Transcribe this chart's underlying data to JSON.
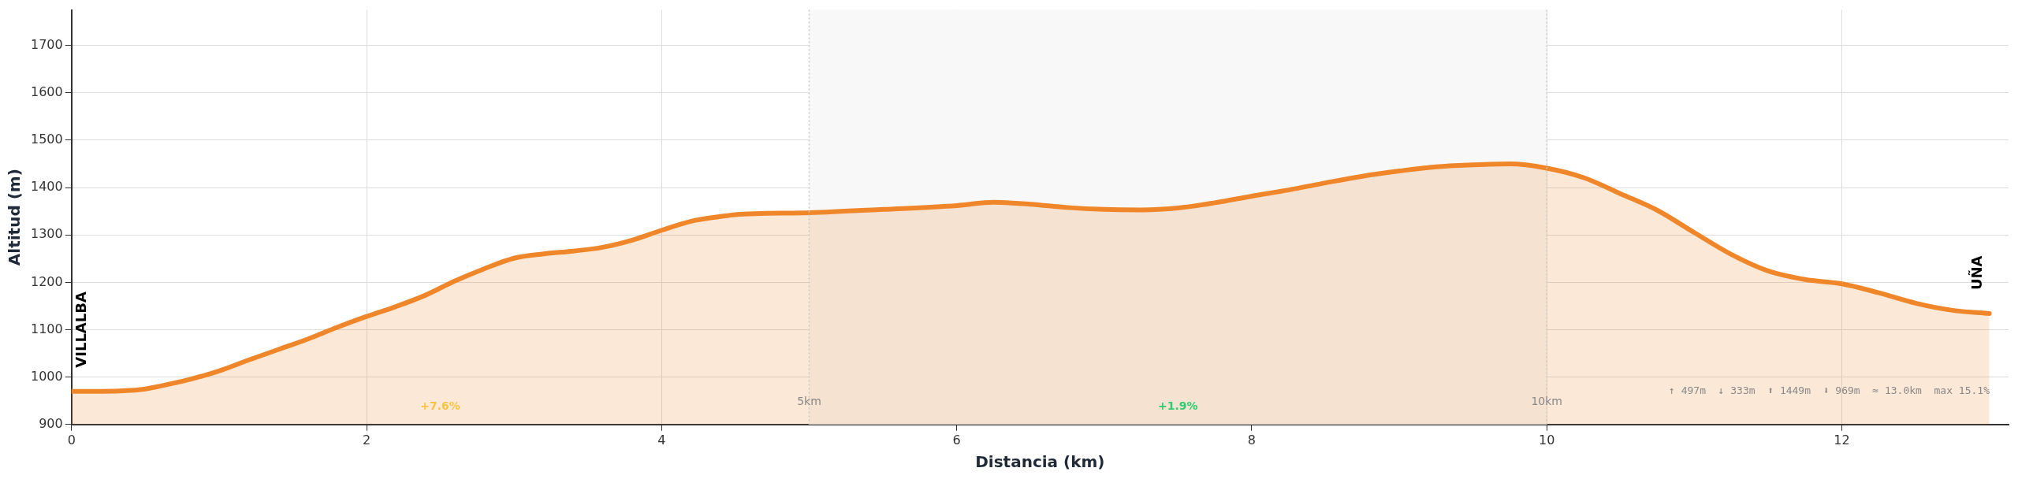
{
  "chart_data": {
    "type": "area",
    "xlabel": "Distancia (km)",
    "ylabel": "Altitud (m)",
    "x": [
      0,
      0.2,
      0.4,
      0.5,
      0.6,
      0.8,
      1.0,
      1.2,
      1.4,
      1.6,
      1.8,
      2.0,
      2.2,
      2.4,
      2.6,
      2.8,
      3.0,
      3.2,
      3.4,
      3.6,
      3.8,
      4.0,
      4.2,
      4.4,
      4.5,
      5.0,
      5.5,
      6.0,
      6.25,
      6.5,
      6.75,
      7.0,
      7.25,
      7.5,
      7.75,
      8.0,
      8.25,
      8.5,
      8.75,
      9.0,
      9.25,
      9.5,
      9.75,
      10.0,
      10.25,
      10.5,
      10.75,
      11.0,
      11.25,
      11.5,
      11.75,
      12.0,
      12.25,
      12.5,
      12.75,
      13.0
    ],
    "series": [
      {
        "color": "#f0862a",
        "values": [
          970,
          970,
          972,
          975,
          981,
          995,
          1013,
          1036,
          1058,
          1080,
          1105,
          1128,
          1149,
          1173,
          1203,
          1229,
          1251,
          1260,
          1266,
          1274,
          1289,
          1310,
          1329,
          1339,
          1343,
          1347,
          1354,
          1362,
          1369,
          1365,
          1358,
          1354,
          1353,
          1357,
          1368,
          1382,
          1395,
          1410,
          1424,
          1435,
          1444,
          1448,
          1450,
          1441,
          1421,
          1387,
          1352,
          1305,
          1259,
          1224,
          1206,
          1197,
          1178,
          1156,
          1141,
          1134
        ]
      }
    ],
    "xlim": [
      0,
      13.13
    ],
    "xticks": [
      0,
      2,
      4,
      6,
      8,
      10,
      12
    ],
    "ylim": [
      900,
      1775
    ],
    "yticks": [
      900,
      1000,
      1100,
      1200,
      1300,
      1400,
      1500,
      1600,
      1700
    ],
    "grid": true,
    "legend": false,
    "bands": [
      {
        "axis": "x",
        "from": 5,
        "to": 10,
        "color": "#f8f8f8"
      }
    ],
    "ref_lines": [
      {
        "axis": "x",
        "value": 5,
        "label": "5km",
        "color": "#c8c8c8",
        "line_style": "dotted"
      },
      {
        "axis": "x",
        "value": 10,
        "label": "10km",
        "color": "#c8c8c8",
        "line_style": "dotted"
      }
    ],
    "annotations": [
      {
        "text": "VILLALBA",
        "x": 0,
        "y": 970
      },
      {
        "text": "UÑA",
        "x": 13,
        "y": 1134
      },
      "+7.6%",
      "+1.9%",
      "↑ 497m  ↓ 333m  ⬆ 1449m  ⬇ 969m  ≈ 13.0km  max 15.1%"
    ]
  }
}
